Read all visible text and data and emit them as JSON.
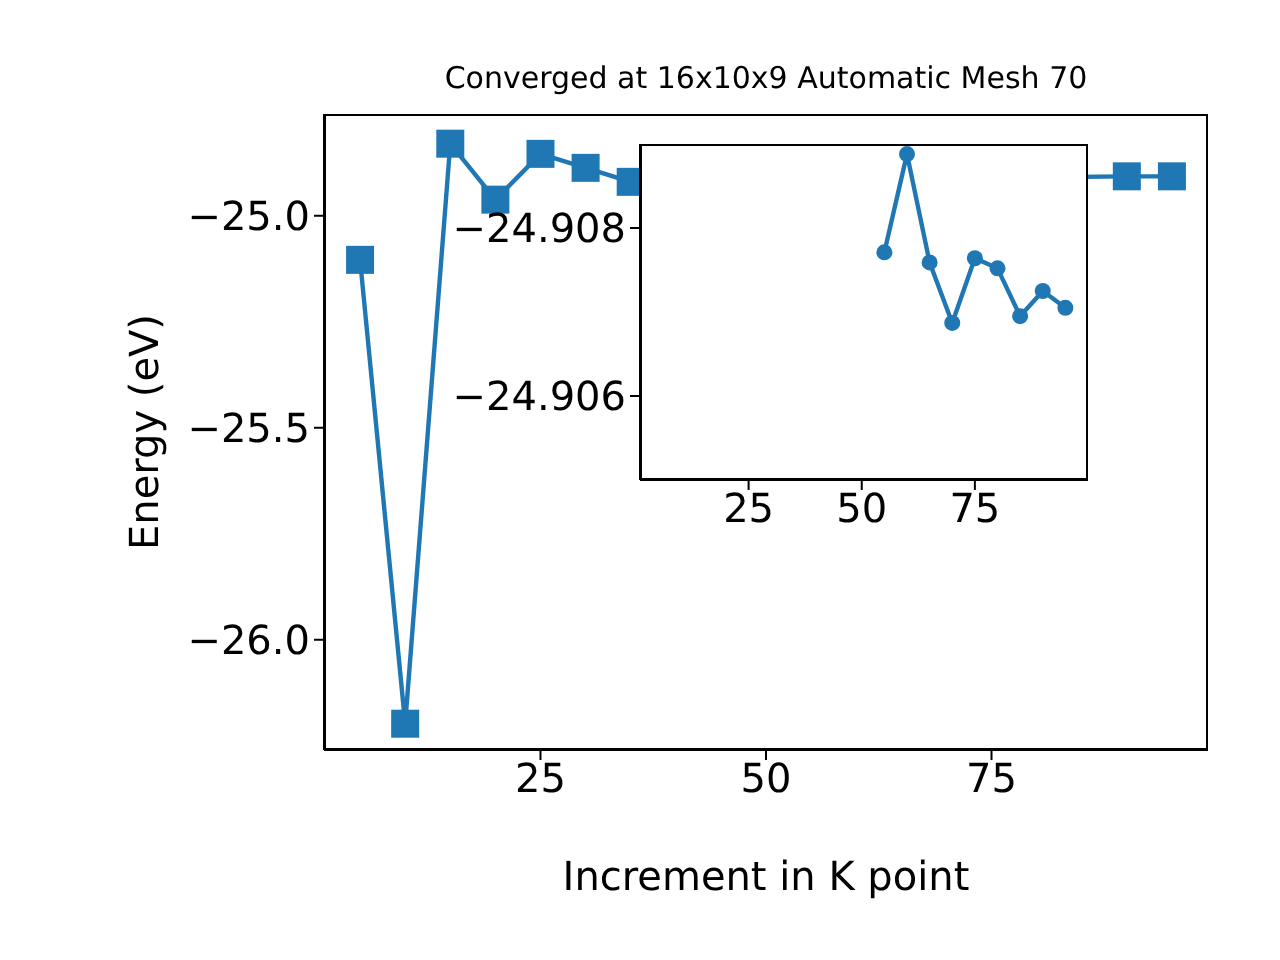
{
  "chart_data": [
    {
      "type": "line",
      "title": "Converged at 16x10x9 Automatic Mesh 70",
      "xlabel": "Increment in K point",
      "ylabel": "Energy (eV)",
      "x": [
        5,
        10,
        15,
        20,
        25,
        30,
        35,
        40,
        45,
        50,
        55,
        60,
        65,
        70,
        75,
        80,
        85,
        90,
        95
      ],
      "series": [
        {
          "color": "#1f77b4",
          "values": [
            -25.104,
            -26.198,
            -24.83,
            -24.962,
            -24.854,
            -24.887,
            -24.92,
            null,
            null,
            null,
            null,
            null,
            null,
            null,
            null,
            null,
            null,
            -24.907,
            -24.907
          ]
        }
      ],
      "xlim": [
        1,
        99
      ],
      "xticks": [
        25,
        50,
        75
      ],
      "ylim": [
        -26.26,
        -24.76
      ],
      "yticks": [
        {
          "value": -26.0,
          "label": "−26.0"
        },
        {
          "value": -25.5,
          "label": "−25.5"
        },
        {
          "value": -25.0,
          "label": "−25.0"
        }
      ],
      "marker": "square"
    },
    {
      "type": "line",
      "x": [
        55,
        60,
        65,
        70,
        75,
        80,
        85,
        90,
        95
      ],
      "series": [
        {
          "color": "#1f77b4",
          "values": [
            -24.90771,
            -24.90888,
            -24.90759,
            -24.90687,
            -24.90764,
            -24.90752,
            -24.90695,
            -24.90725,
            -24.90705
          ]
        }
      ],
      "xlim": [
        1,
        100
      ],
      "xticks": [
        25,
        50,
        75
      ],
      "ylim": [
        -24.905,
        -24.909
      ],
      "yticks": [
        {
          "value": -24.908,
          "label": "−24.908"
        },
        {
          "value": -24.906,
          "label": "−24.906"
        }
      ],
      "marker": "circle"
    }
  ]
}
